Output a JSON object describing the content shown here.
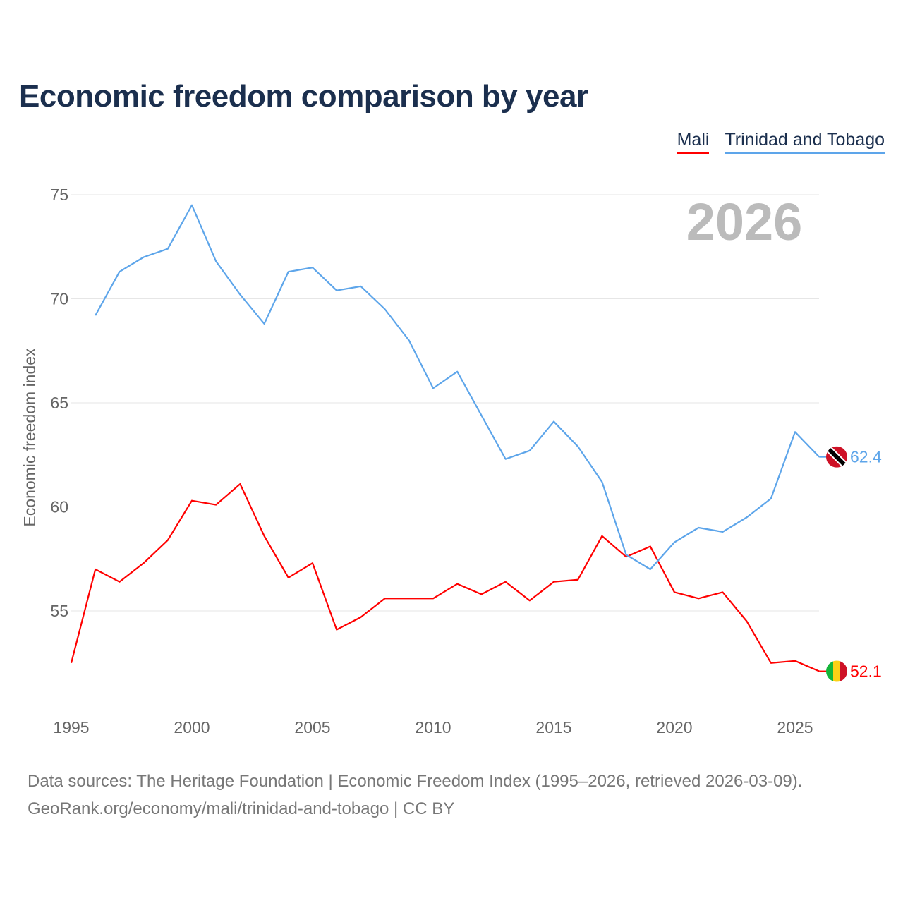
{
  "title": "Economic freedom comparison by year",
  "year_watermark": "2026",
  "source_line1": "Data sources: The Heritage Foundation | Economic Freedom Index (1995–2026, retrieved 2026-03-09).",
  "source_line2": "GeoRank.org/economy/mali/trinidad-and-tobago | CC BY",
  "chart_data": {
    "type": "line",
    "title": "Economic freedom comparison by year",
    "xlabel": "",
    "ylabel": "Economic freedom index",
    "xlim": [
      1995,
      2026
    ],
    "ylim": [
      51,
      76
    ],
    "xticks": [
      "1995",
      "2000",
      "2005",
      "2010",
      "2015",
      "2020",
      "2025"
    ],
    "yticks": [
      "55",
      "60",
      "65",
      "70",
      "75"
    ],
    "grid": true,
    "legend_position": "top-right",
    "series": [
      {
        "name": "Mali",
        "color": "#ff0000",
        "end_label": "52.1",
        "x": [
          1995,
          1996,
          1997,
          1998,
          1999,
          2000,
          2001,
          2002,
          2003,
          2004,
          2005,
          2006,
          2007,
          2008,
          2009,
          2010,
          2011,
          2012,
          2013,
          2014,
          2015,
          2016,
          2017,
          2018,
          2019,
          2020,
          2021,
          2022,
          2023,
          2024,
          2025,
          2026
        ],
        "values": [
          52.5,
          57.0,
          56.4,
          57.3,
          58.4,
          60.3,
          60.1,
          61.1,
          58.6,
          56.6,
          57.3,
          54.1,
          54.7,
          55.6,
          55.6,
          55.6,
          56.3,
          55.8,
          56.4,
          55.5,
          56.4,
          56.5,
          58.6,
          57.6,
          58.1,
          55.9,
          55.6,
          55.9,
          54.5,
          52.5,
          52.6,
          52.1
        ]
      },
      {
        "name": "Trinidad and Tobago",
        "color": "#5da5ea",
        "end_label": "62.4",
        "x": [
          1996,
          1997,
          1998,
          1999,
          2000,
          2001,
          2002,
          2003,
          2004,
          2005,
          2006,
          2007,
          2008,
          2009,
          2010,
          2011,
          2012,
          2013,
          2014,
          2015,
          2016,
          2017,
          2018,
          2019,
          2020,
          2021,
          2022,
          2023,
          2024,
          2025,
          2026
        ],
        "values": [
          69.2,
          71.3,
          72.0,
          72.4,
          74.5,
          71.8,
          70.2,
          68.8,
          71.3,
          71.5,
          70.4,
          70.6,
          69.5,
          68.0,
          65.7,
          66.5,
          64.4,
          62.3,
          62.7,
          64.1,
          62.9,
          61.2,
          57.7,
          57.0,
          58.3,
          59.0,
          58.8,
          59.5,
          60.4,
          63.6,
          62.4
        ]
      }
    ]
  }
}
